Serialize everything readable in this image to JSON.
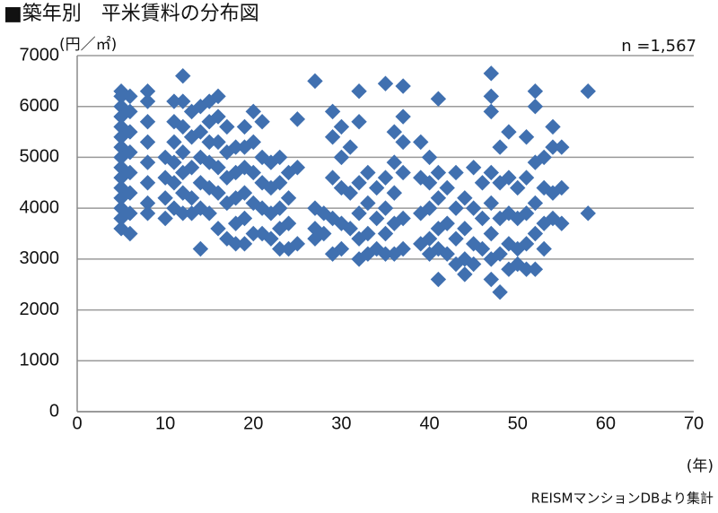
{
  "chart_data": {
    "type": "scatter",
    "title": "■築年別　平米賃料の分布図",
    "y_label": "(円／㎡)",
    "x_label": "(年)",
    "annotation": "n =1,567",
    "source": "REISMマンションDBより集計",
    "color": "#4070b0",
    "grid": true,
    "xlim": [
      0,
      70
    ],
    "xticks": [
      0,
      10,
      20,
      30,
      40,
      50,
      60,
      70
    ],
    "ylim": [
      0,
      7000
    ],
    "yticks": [
      0,
      1000,
      2000,
      3000,
      4000,
      5000,
      6000,
      7000
    ],
    "x": [
      5,
      5,
      5,
      5,
      5,
      5,
      5,
      5,
      5,
      5,
      5,
      5,
      5,
      5,
      5,
      6,
      6,
      6,
      6,
      6,
      6,
      6,
      6,
      8,
      8,
      8,
      8,
      8,
      8,
      8,
      8,
      10,
      10,
      10,
      10,
      11,
      11,
      11,
      11,
      11,
      11,
      12,
      12,
      12,
      12,
      12,
      12,
      12,
      13,
      13,
      13,
      13,
      13,
      14,
      14,
      14,
      14,
      14,
      14,
      15,
      15,
      15,
      15,
      15,
      15,
      16,
      16,
      16,
      16,
      16,
      16,
      17,
      17,
      17,
      17,
      17,
      18,
      18,
      18,
      18,
      18,
      19,
      19,
      19,
      19,
      19,
      19,
      20,
      20,
      20,
      20,
      20,
      21,
      21,
      21,
      21,
      21,
      22,
      22,
      22,
      22,
      23,
      23,
      23,
      23,
      23,
      24,
      24,
      24,
      24,
      25,
      25,
      25,
      27,
      27,
      27,
      27,
      28,
      28,
      29,
      29,
      29,
      29,
      29,
      30,
      30,
      30,
      30,
      30,
      31,
      31,
      31,
      32,
      32,
      32,
      32,
      32,
      32,
      33,
      33,
      33,
      33,
      34,
      34,
      34,
      35,
      35,
      35,
      35,
      35,
      36,
      36,
      36,
      36,
      36,
      37,
      37,
      37,
      37,
      37,
      37,
      39,
      39,
      39,
      39,
      40,
      40,
      40,
      40,
      40,
      41,
      41,
      41,
      41,
      41,
      41,
      42,
      42,
      42,
      43,
      43,
      43,
      43,
      44,
      44,
      44,
      44,
      45,
      45,
      45,
      45,
      46,
      46,
      46,
      47,
      47,
      47,
      47,
      47,
      47,
      47,
      47,
      48,
      48,
      48,
      48,
      48,
      49,
      49,
      49,
      49,
      49,
      50,
      50,
      50,
      50,
      51,
      51,
      51,
      51,
      51,
      52,
      52,
      52,
      52,
      52,
      52,
      53,
      53,
      53,
      53,
      54,
      54,
      54,
      54,
      55,
      55,
      55,
      58,
      58
    ],
    "values": [
      6300,
      6200,
      6000,
      5800,
      5600,
      5400,
      5200,
      5000,
      4800,
      4600,
      4400,
      4200,
      4000,
      3800,
      3600,
      6200,
      5900,
      5500,
      5100,
      4700,
      4300,
      3900,
      3500,
      6300,
      6100,
      5700,
      5300,
      4900,
      4500,
      4100,
      3900,
      5000,
      4600,
      4200,
      3800,
      6100,
      5700,
      5300,
      4900,
      4500,
      4000,
      6600,
      6100,
      5600,
      5100,
      4700,
      4300,
      3900,
      5900,
      5400,
      4800,
      4200,
      3900,
      6000,
      5500,
      5000,
      4500,
      4000,
      3200,
      6100,
      5700,
      5300,
      4900,
      4400,
      3900,
      6200,
      5800,
      5300,
      4800,
      4300,
      3600,
      5600,
      5100,
      4600,
      4100,
      3400,
      5200,
      4700,
      4200,
      3700,
      3300,
      5600,
      5200,
      4800,
      4300,
      3800,
      3300,
      5900,
      5300,
      4700,
      4100,
      3500,
      5700,
      5000,
      4500,
      4000,
      3500,
      4900,
      4400,
      3900,
      3400,
      5000,
      4500,
      4000,
      3600,
      3200,
      4700,
      4200,
      3700,
      3200,
      5750,
      4800,
      3300,
      6500,
      4000,
      3600,
      3400,
      3900,
      3500,
      5900,
      5400,
      4600,
      3800,
      3100,
      5600,
      5000,
      4400,
      3700,
      3200,
      5200,
      4300,
      3600,
      6300,
      5700,
      4500,
      3900,
      3400,
      3000,
      4700,
      4100,
      3500,
      3100,
      4400,
      3800,
      3200,
      6450,
      4600,
      4000,
      3500,
      3100,
      5500,
      4900,
      4300,
      3700,
      3100,
      6400,
      5800,
      5300,
      4700,
      3800,
      3200,
      5300,
      4600,
      3900,
      3300,
      5000,
      4500,
      4000,
      3400,
      3100,
      6150,
      4700,
      4200,
      3600,
      3200,
      2600,
      4400,
      3700,
      3100,
      4700,
      4000,
      3400,
      2900,
      4200,
      3600,
      3000,
      2700,
      4800,
      4000,
      3300,
      2900,
      4500,
      3800,
      3200,
      6650,
      6200,
      5900,
      4700,
      4100,
      3500,
      3000,
      2600,
      5200,
      4500,
      3800,
      3100,
      2350,
      5500,
      4600,
      3900,
      3300,
      2800,
      4400,
      3800,
      3200,
      2900,
      5400,
      4600,
      3900,
      3300,
      2800,
      6300,
      6000,
      4900,
      4100,
      3500,
      2800,
      5000,
      4400,
      3700,
      3200,
      5600,
      5200,
      4300,
      3800,
      5200,
      4400,
      3700,
      6300,
      3900
    ]
  }
}
